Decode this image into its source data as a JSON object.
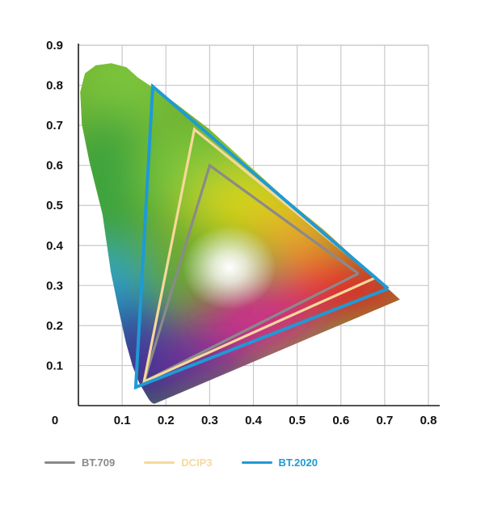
{
  "chart_data": {
    "type": "line",
    "title": "",
    "xlabel": "",
    "ylabel": "",
    "xlim": [
      0,
      0.8
    ],
    "ylim": [
      0,
      0.9
    ],
    "grid": true,
    "legend_position": "bottom-left",
    "x_ticks": [
      "0",
      "0.1",
      "0.2",
      "0.3",
      "0.4",
      "0.5",
      "0.6",
      "0.7",
      "0.8"
    ],
    "y_ticks": [
      "0.1",
      "0.2",
      "0.3",
      "0.4",
      "0.5",
      "0.6",
      "0.7",
      "0.8",
      "0.9"
    ],
    "spectral_locus": {
      "colors": [
        "#2a2e8c",
        "#2246a8",
        "#2aa4d4",
        "#3aa33c",
        "#7cc53a",
        "#d7d417",
        "#f0a42b",
        "#e81d2b",
        "#d12c8c"
      ],
      "points": [
        [
          0.175,
          0.005
        ],
        [
          0.171,
          0.005
        ],
        [
          0.166,
          0.009
        ],
        [
          0.161,
          0.016
        ],
        [
          0.152,
          0.032
        ],
        [
          0.139,
          0.057
        ],
        [
          0.124,
          0.098
        ],
        [
          0.109,
          0.156
        ],
        [
          0.094,
          0.229
        ],
        [
          0.074,
          0.334
        ],
        [
          0.055,
          0.478
        ],
        [
          0.025,
          0.61
        ],
        [
          0.008,
          0.702
        ],
        [
          0.004,
          0.783
        ],
        [
          0.015,
          0.83
        ],
        [
          0.04,
          0.85
        ],
        [
          0.075,
          0.855
        ],
        [
          0.11,
          0.845
        ],
        [
          0.135,
          0.82
        ],
        [
          0.21,
          0.765
        ],
        [
          0.3,
          0.69
        ],
        [
          0.38,
          0.61
        ],
        [
          0.47,
          0.52
        ],
        [
          0.56,
          0.44
        ],
        [
          0.66,
          0.34
        ],
        [
          0.735,
          0.265
        ],
        [
          0.175,
          0.005
        ]
      ]
    },
    "series": [
      {
        "name": "BT.709",
        "color": "#8a8a8a",
        "points": [
          [
            0.64,
            0.33
          ],
          [
            0.3,
            0.6
          ],
          [
            0.15,
            0.06
          ],
          [
            0.64,
            0.33
          ]
        ]
      },
      {
        "name": "DCIP3",
        "color": "#f6d99a",
        "points": [
          [
            0.68,
            0.32
          ],
          [
            0.265,
            0.69
          ],
          [
            0.15,
            0.06
          ],
          [
            0.68,
            0.32
          ]
        ]
      },
      {
        "name": "BT.2020",
        "color": "#1e9ad6",
        "points": [
          [
            0.708,
            0.292
          ],
          [
            0.17,
            0.797
          ],
          [
            0.131,
            0.046
          ],
          [
            0.708,
            0.292
          ]
        ]
      }
    ]
  },
  "legend": [
    {
      "label": "BT.709",
      "color": "#8a8a8a"
    },
    {
      "label": "DCIP3",
      "color": "#f6d99a"
    },
    {
      "label": "BT.2020",
      "color": "#1e9ad6"
    }
  ]
}
